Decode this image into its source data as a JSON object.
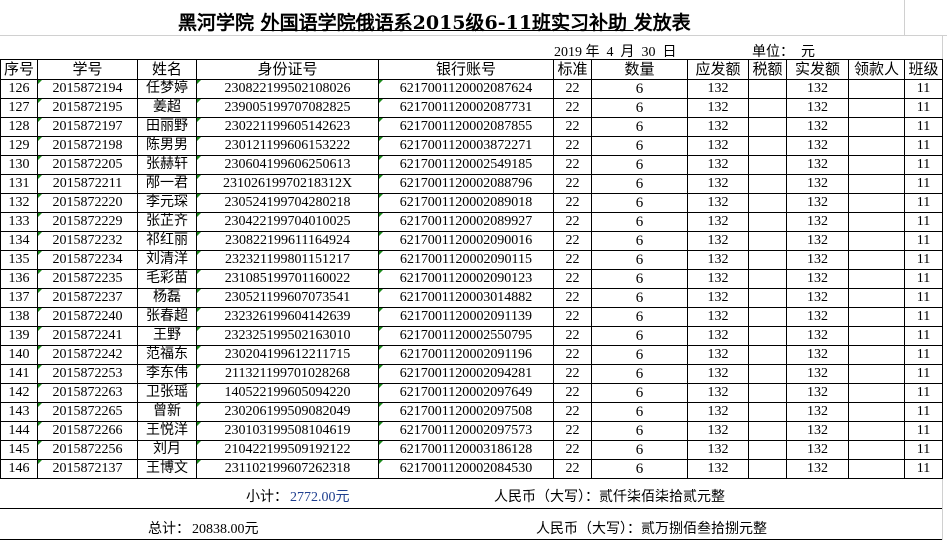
{
  "title": {
    "prefix": "黑河学院 ",
    "underlined": "外国语学院俄语系2015级6-11班实习补助 ",
    "suffix": "发放表"
  },
  "date_line": "2019 年  4  月  30  日",
  "unit_line": "单位：  元",
  "columns": [
    "序号",
    "学号",
    "姓名",
    "身份证号",
    "银行账号",
    "标准",
    "数量",
    "应发额",
    "税额",
    "实发额",
    "领款人",
    "班级"
  ],
  "rows": [
    [
      "126",
      "2015872194",
      "任梦婷",
      "230822199502108026",
      "6217001120002087624",
      "22",
      "6",
      "132",
      "",
      "132",
      "",
      "11"
    ],
    [
      "127",
      "2015872195",
      "姜超",
      "239005199707082825",
      "6217001120002087731",
      "22",
      "6",
      "132",
      "",
      "132",
      "",
      "11"
    ],
    [
      "128",
      "2015872197",
      "田丽野",
      "230221199605142623",
      "6217001120002087855",
      "22",
      "6",
      "132",
      "",
      "132",
      "",
      "11"
    ],
    [
      "129",
      "2015872198",
      "陈男男",
      "230121199606153222",
      "6217001120003872271",
      "22",
      "6",
      "132",
      "",
      "132",
      "",
      "11"
    ],
    [
      "130",
      "2015872205",
      "张赫轩",
      "230604199606250613",
      "6217001120002549185",
      "22",
      "6",
      "132",
      "",
      "132",
      "",
      "11"
    ],
    [
      "131",
      "2015872211",
      "邴一君",
      "231026199702183​12X",
      "6217001120002088796",
      "22",
      "6",
      "132",
      "",
      "132",
      "",
      "11"
    ],
    [
      "132",
      "2015872220",
      "李元琛",
      "230524199704280218",
      "6217001120002089018",
      "22",
      "6",
      "132",
      "",
      "132",
      "",
      "11"
    ],
    [
      "133",
      "2015872229",
      "张芷齐",
      "230422199704010025",
      "6217001120002089927",
      "22",
      "6",
      "132",
      "",
      "132",
      "",
      "11"
    ],
    [
      "134",
      "2015872232",
      "祁红丽",
      "230822199611164924",
      "6217001120002090016",
      "22",
      "6",
      "132",
      "",
      "132",
      "",
      "11"
    ],
    [
      "135",
      "2015872234",
      "刘清洋",
      "232321199801151217",
      "6217001120002090115",
      "22",
      "6",
      "132",
      "",
      "132",
      "",
      "11"
    ],
    [
      "136",
      "2015872235",
      "毛彩苗",
      "231085199701160022",
      "6217001120002090123",
      "22",
      "6",
      "132",
      "",
      "132",
      "",
      "11"
    ],
    [
      "137",
      "2015872237",
      "杨磊",
      "230521199607073541",
      "6217001120003014882",
      "22",
      "6",
      "132",
      "",
      "132",
      "",
      "11"
    ],
    [
      "138",
      "2015872240",
      "张春超",
      "232326199604142639",
      "6217001120002091139",
      "22",
      "6",
      "132",
      "",
      "132",
      "",
      "11"
    ],
    [
      "139",
      "2015872241",
      "王野",
      "232325199502163010",
      "6217001120002550795",
      "22",
      "6",
      "132",
      "",
      "132",
      "",
      "11"
    ],
    [
      "140",
      "2015872242",
      "范福东",
      "230204199612211715",
      "6217001120002091196",
      "22",
      "6",
      "132",
      "",
      "132",
      "",
      "11"
    ],
    [
      "141",
      "2015872253",
      "李东伟",
      "211321199701028268",
      "6217001120002094281",
      "22",
      "6",
      "132",
      "",
      "132",
      "",
      "11"
    ],
    [
      "142",
      "2015872263",
      "卫张瑶",
      "140522199605094220",
      "6217001120002097649",
      "22",
      "6",
      "132",
      "",
      "132",
      "",
      "11"
    ],
    [
      "143",
      "2015872265",
      "曾新",
      "230206199509082049",
      "6217001120002097508",
      "22",
      "6",
      "132",
      "",
      "132",
      "",
      "11"
    ],
    [
      "144",
      "2015872266",
      "王悦洋",
      "230103199508104619",
      "6217001120002097573",
      "22",
      "6",
      "132",
      "",
      "132",
      "",
      "11"
    ],
    [
      "145",
      "2015872256",
      "刘月",
      "210422199509192122",
      "6217001120003186128",
      "22",
      "6",
      "132",
      "",
      "132",
      "",
      "11"
    ],
    [
      "146",
      "2015872137",
      "王博文",
      "231102199607262318",
      "6217001120002084530",
      "22",
      "6",
      "132",
      "",
      "132",
      "",
      "11"
    ]
  ],
  "subtotal": {
    "label": "小计：",
    "value": "2772.00元",
    "words": "人民币（大写）：贰仟柒佰柒拾贰元整"
  },
  "total": {
    "label": "总计：",
    "value": "20838.00元",
    "words": "人民币（大写）：贰万捌佰叁拾捌元整"
  },
  "colors": {
    "comment_marker": "#1a8a1a",
    "subtotal_value": "#1f3f8f"
  }
}
